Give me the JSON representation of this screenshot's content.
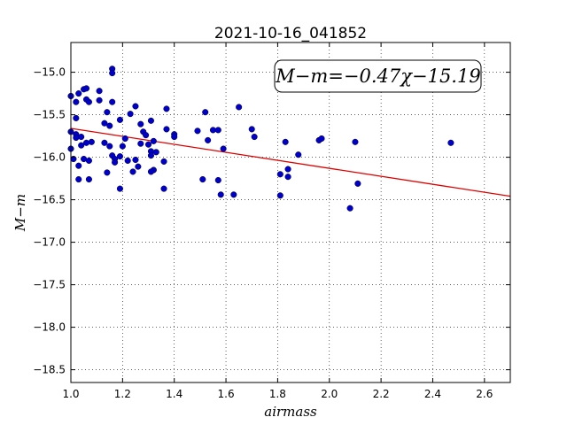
{
  "chart_data": {
    "type": "scatter",
    "title": "2021-10-16_041852",
    "xlabel": "airmass",
    "ylabel": "M−m",
    "xlim": [
      1.0,
      2.7
    ],
    "ylim": [
      -18.65,
      -14.65
    ],
    "y_inverted": true,
    "grid": true,
    "xticks": [
      1.0,
      1.2,
      1.4,
      1.6,
      1.8,
      2.0,
      2.2,
      2.4,
      2.6
    ],
    "xtick_labels": [
      "1.0",
      "1.2",
      "1.4",
      "1.6",
      "1.8",
      "2.0",
      "2.2",
      "2.4",
      "2.6"
    ],
    "yticks": [
      -15.0,
      -15.5,
      -16.0,
      -16.5,
      -17.0,
      -17.5,
      -18.0,
      -18.5
    ],
    "ytick_labels": [
      "−15.0",
      "−15.5",
      "−16.0",
      "−16.5",
      "−17.0",
      "−17.5",
      "−18.0",
      "−18.5"
    ],
    "annotation": "M−m=−0.47χ−15.19",
    "fit": {
      "slope": -0.47,
      "intercept": -15.19
    },
    "marker_color": "#0000cc",
    "fit_color": "#dd0000",
    "series": [
      {
        "points": [
          [
            1.0,
            -15.28
          ],
          [
            1.0,
            -15.7
          ],
          [
            1.0,
            -15.9
          ],
          [
            1.01,
            -16.02
          ],
          [
            1.02,
            -15.35
          ],
          [
            1.02,
            -15.54
          ],
          [
            1.02,
            -15.73
          ],
          [
            1.02,
            -15.77
          ],
          [
            1.03,
            -16.1
          ],
          [
            1.03,
            -16.26
          ],
          [
            1.03,
            -15.25
          ],
          [
            1.04,
            -15.76
          ],
          [
            1.04,
            -15.86
          ],
          [
            1.05,
            -15.2
          ],
          [
            1.05,
            -16.02
          ],
          [
            1.06,
            -15.19
          ],
          [
            1.06,
            -15.32
          ],
          [
            1.06,
            -15.83
          ],
          [
            1.07,
            -15.35
          ],
          [
            1.07,
            -16.04
          ],
          [
            1.07,
            -16.26
          ],
          [
            1.08,
            -15.82
          ],
          [
            1.11,
            -15.22
          ],
          [
            1.11,
            -15.33
          ],
          [
            1.13,
            -15.83
          ],
          [
            1.13,
            -15.6
          ],
          [
            1.14,
            -15.47
          ],
          [
            1.14,
            -16.18
          ],
          [
            1.15,
            -15.63
          ],
          [
            1.15,
            -15.87
          ],
          [
            1.16,
            -15.35
          ],
          [
            1.16,
            -14.96
          ],
          [
            1.16,
            -15.01
          ],
          [
            1.16,
            -15.98
          ],
          [
            1.17,
            -16.02
          ],
          [
            1.17,
            -16.06
          ],
          [
            1.19,
            -15.56
          ],
          [
            1.19,
            -15.99
          ],
          [
            1.19,
            -16.37
          ],
          [
            1.2,
            -15.87
          ],
          [
            1.21,
            -15.78
          ],
          [
            1.22,
            -16.04
          ],
          [
            1.23,
            -15.49
          ],
          [
            1.24,
            -16.17
          ],
          [
            1.25,
            -15.4
          ],
          [
            1.25,
            -16.03
          ],
          [
            1.26,
            -16.11
          ],
          [
            1.27,
            -15.61
          ],
          [
            1.27,
            -15.84
          ],
          [
            1.28,
            -15.7
          ],
          [
            1.29,
            -15.74
          ],
          [
            1.3,
            -15.85
          ],
          [
            1.31,
            -15.57
          ],
          [
            1.31,
            -15.93
          ],
          [
            1.31,
            -15.98
          ],
          [
            1.32,
            -15.81
          ],
          [
            1.32,
            -16.15
          ],
          [
            1.31,
            -16.17
          ],
          [
            1.33,
            -15.94
          ],
          [
            1.36,
            -16.05
          ],
          [
            1.36,
            -16.37
          ],
          [
            1.37,
            -15.43
          ],
          [
            1.37,
            -15.67
          ],
          [
            1.4,
            -15.73
          ],
          [
            1.4,
            -15.76
          ],
          [
            1.49,
            -15.69
          ],
          [
            1.51,
            -16.26
          ],
          [
            1.52,
            -15.47
          ],
          [
            1.53,
            -15.8
          ],
          [
            1.55,
            -15.68
          ],
          [
            1.57,
            -15.68
          ],
          [
            1.57,
            -16.27
          ],
          [
            1.58,
            -16.44
          ],
          [
            1.59,
            -15.9
          ],
          [
            1.63,
            -16.44
          ],
          [
            1.65,
            -15.41
          ],
          [
            1.7,
            -15.67
          ],
          [
            1.71,
            -15.76
          ],
          [
            1.81,
            -16.2
          ],
          [
            1.81,
            -16.45
          ],
          [
            1.83,
            -15.82
          ],
          [
            1.84,
            -16.14
          ],
          [
            1.84,
            -16.23
          ],
          [
            1.88,
            -15.97
          ],
          [
            1.96,
            -15.8
          ],
          [
            1.97,
            -15.78
          ],
          [
            2.08,
            -16.6
          ],
          [
            2.1,
            -15.82
          ],
          [
            2.11,
            -16.31
          ],
          [
            2.47,
            -15.83
          ]
        ]
      }
    ]
  }
}
